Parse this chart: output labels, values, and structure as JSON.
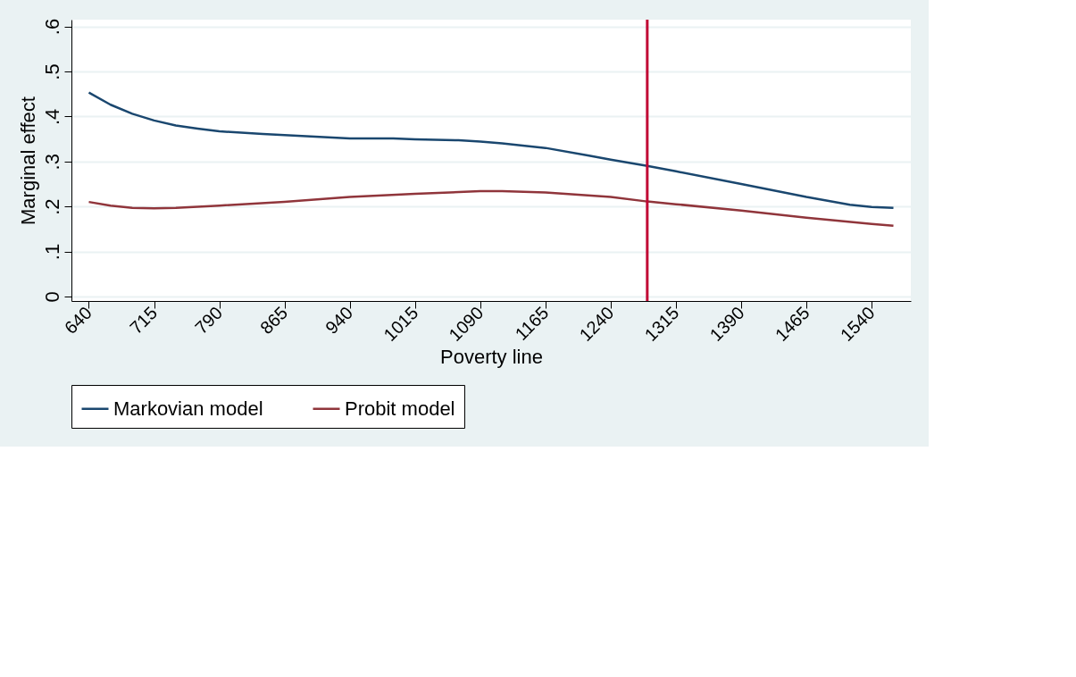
{
  "chart_data": {
    "type": "line",
    "xlabel": "Poverty line",
    "ylabel": "Marginal effect",
    "xlim": [
      620,
      1585
    ],
    "xticks": [
      640,
      715,
      790,
      865,
      940,
      1015,
      1090,
      1165,
      1240,
      1315,
      1390,
      1465,
      1540
    ],
    "ylim": [
      -0.01,
      0.615
    ],
    "yticks": [
      0,
      {
        "value": 0.1,
        "label": ".1"
      },
      {
        "value": 0.2,
        "label": ".2"
      },
      {
        "value": 0.3,
        "label": ".3"
      },
      {
        "value": 0.4,
        "label": ".4"
      },
      {
        "value": 0.5,
        "label": ".5"
      },
      {
        "value": 0.6,
        "label": ".6"
      }
    ],
    "grid": "y",
    "legend": "bottom",
    "ref_lines": [
      {
        "axis": "x",
        "value": 1282,
        "color": "#c10534"
      }
    ],
    "series": [
      {
        "name": "Markovian model",
        "color": "#1a476f",
        "x": [
          640,
          665,
          690,
          715,
          740,
          765,
          790,
          840,
          890,
          940,
          990,
          1015,
          1065,
          1090,
          1115,
          1165,
          1215,
          1240,
          1282,
          1315,
          1390,
          1465,
          1515,
          1540,
          1565
        ],
        "values": [
          0.453,
          0.426,
          0.406,
          0.391,
          0.38,
          0.373,
          0.367,
          0.361,
          0.356,
          0.351,
          0.351,
          0.349,
          0.347,
          0.344,
          0.34,
          0.33,
          0.313,
          0.304,
          0.29,
          0.278,
          0.25,
          0.221,
          0.204,
          0.199,
          0.197
        ]
      },
      {
        "name": "Probit model",
        "color": "#90353b",
        "x": [
          640,
          665,
          690,
          715,
          740,
          790,
          865,
          940,
          1015,
          1090,
          1115,
          1165,
          1240,
          1282,
          1315,
          1390,
          1465,
          1540,
          1565
        ],
        "values": [
          0.21,
          0.202,
          0.197,
          0.196,
          0.197,
          0.202,
          0.21,
          0.221,
          0.228,
          0.234,
          0.234,
          0.231,
          0.221,
          0.211,
          0.205,
          0.191,
          0.175,
          0.161,
          0.157
        ]
      }
    ]
  }
}
